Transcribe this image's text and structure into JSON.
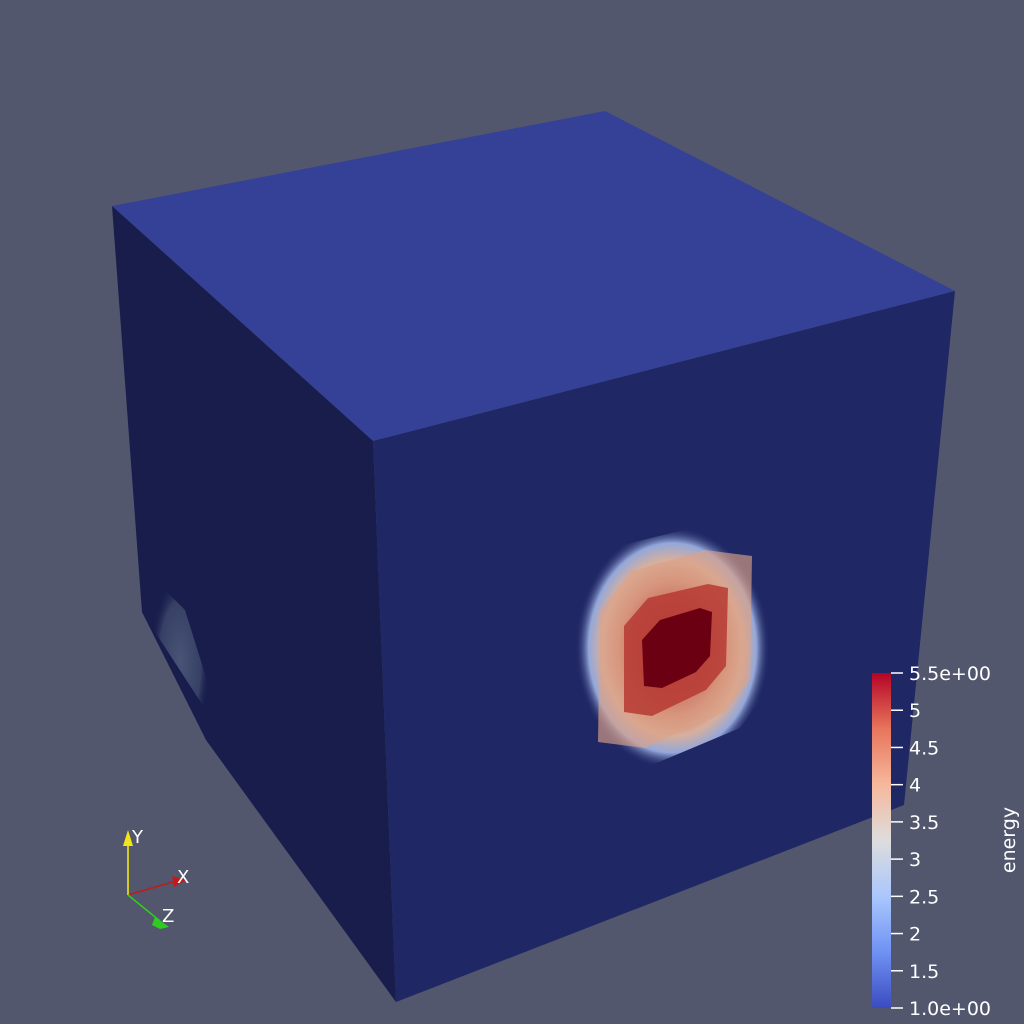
{
  "scene": {
    "background": "#52576e",
    "object": "cube",
    "faces": {
      "top_color": "#344196",
      "front_color": "#1f2764",
      "left_color": "#181d4c"
    },
    "hotspot_colors": [
      "#6b0012",
      "#a8232a",
      "#d46b56",
      "#e4a88a",
      "#c9ccd9",
      "#8ea4dc"
    ]
  },
  "orientation_axes": {
    "labels": {
      "x": "X",
      "y": "Y",
      "z": "Z"
    },
    "colors": {
      "x": "#c21a1a",
      "y": "#f2e416",
      "z": "#2ccd1e"
    }
  },
  "scalar_bar": {
    "title": "energy",
    "range": [
      1.0,
      5.5
    ],
    "ticks": [
      {
        "value": 5.5,
        "label": "5.5e+00"
      },
      {
        "value": 5,
        "label": "5"
      },
      {
        "value": 4.5,
        "label": "4.5"
      },
      {
        "value": 4,
        "label": "4"
      },
      {
        "value": 3.5,
        "label": "3.5"
      },
      {
        "value": 3,
        "label": "3"
      },
      {
        "value": 2.5,
        "label": "2.5"
      },
      {
        "value": 2,
        "label": "2"
      },
      {
        "value": 1.5,
        "label": "1.5"
      },
      {
        "value": 1.0,
        "label": "1.0e+00"
      }
    ],
    "colormap": [
      "#3b4cc0",
      "#6f92f3",
      "#aac7fd",
      "#dddddd",
      "#f6b89c",
      "#e7755b",
      "#b40426"
    ],
    "colormap_name": "Cool to Warm"
  }
}
